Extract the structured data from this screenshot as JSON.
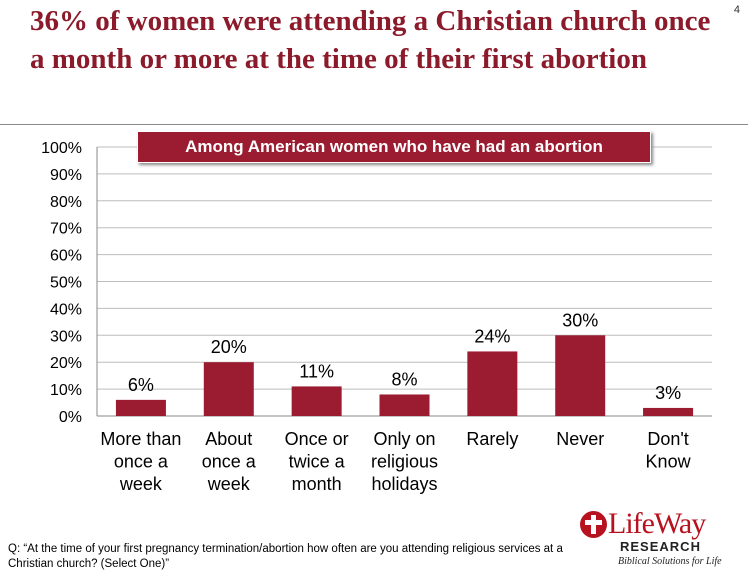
{
  "page": {
    "title": "36% of women were attending a Christian church once a month or more at the time of their first abortion",
    "page_number": "4",
    "question": "Q: “At the time of your first pregnancy termination/abortion how often are you attending religious services at a Christian church? (Select One)”"
  },
  "logo": {
    "name": "LifeWay",
    "sub": "RESEARCH",
    "tagline": "Biblical Solutions for Life",
    "icon": "cross-circle-icon"
  },
  "colors": {
    "bar": "#9b1b30",
    "title": "#8b1a2b",
    "grid": "#bdbdbd"
  },
  "chart_data": {
    "type": "bar",
    "title": "Among American women who have had an abortion",
    "categories": [
      [
        "More than",
        "once a",
        "week"
      ],
      [
        "About",
        "once a",
        "week"
      ],
      [
        "Once or",
        "twice a",
        "month"
      ],
      [
        "Only on",
        "religious",
        "holidays"
      ],
      [
        "Rarely"
      ],
      [
        "Never"
      ],
      [
        "Don't",
        "Know"
      ]
    ],
    "values": [
      6,
      20,
      11,
      8,
      24,
      30,
      3
    ],
    "value_labels": [
      "6%",
      "20%",
      "11%",
      "8%",
      "24%",
      "30%",
      "3%"
    ],
    "ylim": [
      0,
      100
    ],
    "yticks": [
      "0%",
      "10%",
      "20%",
      "30%",
      "40%",
      "50%",
      "60%",
      "70%",
      "80%",
      "90%",
      "100%"
    ],
    "xlabel": "",
    "ylabel": "",
    "grid": true
  }
}
